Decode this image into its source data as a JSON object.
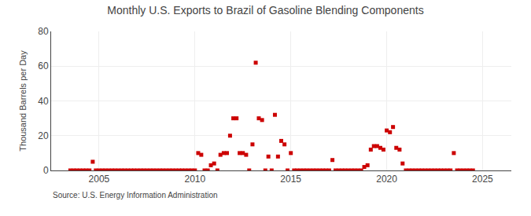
{
  "chart_data": {
    "type": "scatter",
    "title": "Monthly U.S. Exports to Brazil of Gasoline Blending Components",
    "ylabel": "Thousand Barrels per Day",
    "source": "Source: U.S. Energy Information Administration",
    "color": "#cc0000",
    "marker": "square",
    "grid": true,
    "xlim": [
      2002.5,
      2026.5
    ],
    "xticks": [
      2005,
      2010,
      2015,
      2020,
      2025
    ],
    "ylim": [
      0,
      80
    ],
    "yticks": [
      0,
      20,
      40,
      60,
      80
    ],
    "x": [
      2003.5,
      2003.67,
      2003.83,
      2004.0,
      2004.17,
      2004.33,
      2004.5,
      2004.67,
      2004.83,
      2005.0,
      2005.17,
      2005.33,
      2005.5,
      2005.67,
      2005.83,
      2006.0,
      2006.17,
      2006.33,
      2006.5,
      2006.67,
      2006.83,
      2007.0,
      2007.17,
      2007.33,
      2007.5,
      2007.67,
      2007.83,
      2008.0,
      2008.17,
      2008.33,
      2008.5,
      2008.67,
      2008.83,
      2009.0,
      2009.17,
      2009.33,
      2009.5,
      2009.67,
      2009.83,
      2010.0,
      2010.17,
      2010.33,
      2010.5,
      2010.67,
      2010.83,
      2011.0,
      2011.17,
      2011.33,
      2011.5,
      2011.67,
      2011.83,
      2012.0,
      2012.17,
      2012.33,
      2012.5,
      2012.67,
      2012.83,
      2013.0,
      2013.17,
      2013.33,
      2013.5,
      2013.67,
      2013.83,
      2014.0,
      2014.17,
      2014.33,
      2014.5,
      2014.67,
      2014.83,
      2015.0,
      2015.17,
      2015.33,
      2015.5,
      2015.67,
      2015.83,
      2016.0,
      2016.17,
      2016.33,
      2016.5,
      2016.67,
      2016.83,
      2017.0,
      2017.17,
      2017.33,
      2017.5,
      2017.67,
      2017.83,
      2018.0,
      2018.17,
      2018.33,
      2018.5,
      2018.67,
      2018.83,
      2019.0,
      2019.17,
      2019.33,
      2019.5,
      2019.67,
      2019.83,
      2020.0,
      2020.17,
      2020.33,
      2020.5,
      2020.67,
      2020.83,
      2021.0,
      2021.17,
      2021.33,
      2021.5,
      2021.67,
      2021.83,
      2022.0,
      2022.17,
      2022.33,
      2022.5,
      2022.67,
      2022.83,
      2023.0,
      2023.17,
      2023.33,
      2023.5,
      2023.67,
      2023.83,
      2024.0,
      2024.17,
      2024.33,
      2024.5
    ],
    "values": [
      0,
      0,
      0,
      0,
      0,
      0,
      0,
      5,
      0,
      0,
      0,
      0,
      0,
      0,
      0,
      0,
      0,
      0,
      0,
      0,
      0,
      0,
      0,
      0,
      0,
      0,
      0,
      0,
      0,
      0,
      0,
      0,
      0,
      0,
      0,
      0,
      0,
      0,
      0,
      0,
      10,
      9,
      0,
      0,
      3,
      4,
      0,
      9,
      10,
      10,
      20,
      30,
      30,
      10,
      10,
      9,
      0,
      15,
      62,
      30,
      29,
      0,
      8,
      0,
      32,
      8,
      17,
      15,
      0,
      10,
      0,
      0,
      0,
      0,
      0,
      0,
      0,
      0,
      0,
      0,
      0,
      0,
      6,
      0,
      0,
      0,
      0,
      0,
      0,
      0,
      0,
      0,
      2,
      3,
      12,
      14,
      14,
      13,
      12,
      23,
      22,
      25,
      13,
      12,
      4,
      0,
      0,
      0,
      0,
      0,
      0,
      0,
      0,
      0,
      0,
      0,
      0,
      0,
      0,
      0,
      10,
      0,
      0,
      0,
      0,
      0,
      0
    ]
  }
}
